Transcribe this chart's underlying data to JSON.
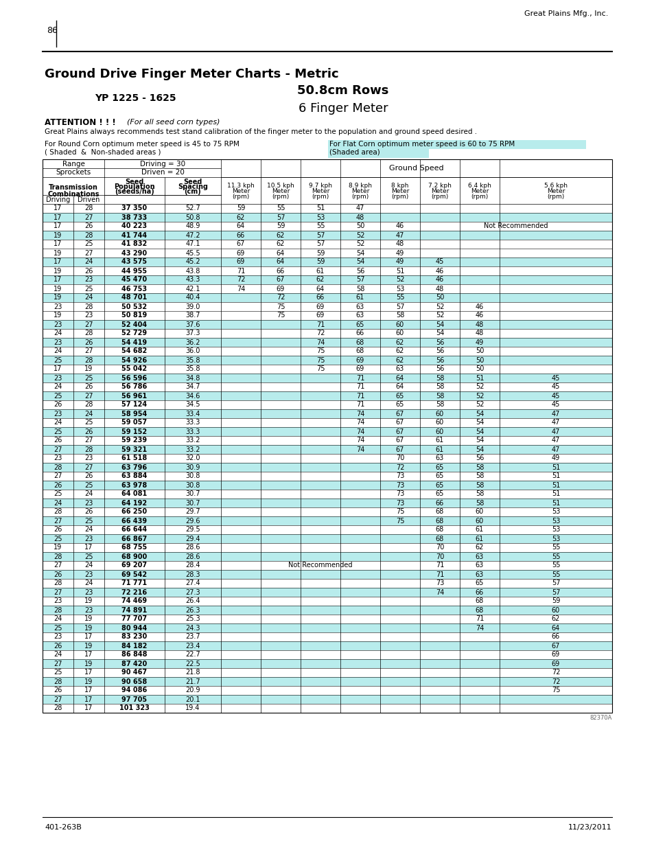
{
  "page_num": "86",
  "company": "Great Plains Mfg., Inc.",
  "title": "Ground Drive Finger Meter Charts - Metric",
  "subtitle1": "YP 1225 - 1625",
  "subtitle2": "50.8cm Rows",
  "subtitle3": "6 Finger Meter",
  "attention_bold": "ATTENTION ! ! !",
  "attention_normal": "  (For all seed corn types)",
  "attention_line2": "Great Plains always recommends test stand calibration of the finger meter to the population and ground speed desired .",
  "round_corn_line1": "For Round Corn optimum meter speed is 45 to 75 RPM",
  "round_corn_line2": "( Shaded  &  Non-shaded areas )",
  "flat_corn_line1": "For Flat Corn optimum meter speed is 60 to 75 RPM",
  "flat_corn_line2": "(Shaded area)",
  "driving_val": "Driving = 30",
  "driven_val": "Driven = 20",
  "ground_speed_label": "Ground Speed",
  "not_recommended_text": "Not Recommended",
  "footer_left": "401-263B",
  "footer_right": "11/23/2011",
  "figure_num": "82370A",
  "rows": [
    [
      17,
      28,
      "37 350",
      52.7,
      59,
      55,
      51,
      47,
      "",
      "",
      "",
      ""
    ],
    [
      17,
      27,
      "38 733",
      50.8,
      62,
      57,
      53,
      48,
      "",
      "",
      "",
      ""
    ],
    [
      17,
      26,
      "40 223",
      48.9,
      64,
      59,
      55,
      50,
      46,
      "",
      "",
      ""
    ],
    [
      19,
      28,
      "41 744",
      47.2,
      66,
      62,
      57,
      52,
      47,
      "",
      "",
      ""
    ],
    [
      17,
      25,
      "41 832",
      47.1,
      67,
      62,
      57,
      52,
      48,
      "",
      "",
      ""
    ],
    [
      19,
      27,
      "43 290",
      45.5,
      69,
      64,
      59,
      54,
      49,
      "",
      "",
      ""
    ],
    [
      17,
      24,
      "43 575",
      45.2,
      69,
      64,
      59,
      54,
      49,
      45,
      "",
      ""
    ],
    [
      19,
      26,
      "44 955",
      43.8,
      71,
      66,
      61,
      56,
      51,
      46,
      "",
      ""
    ],
    [
      17,
      23,
      "45 470",
      43.3,
      72,
      67,
      62,
      57,
      52,
      46,
      "",
      ""
    ],
    [
      19,
      25,
      "46 753",
      42.1,
      74,
      69,
      64,
      58,
      53,
      48,
      "",
      ""
    ],
    [
      19,
      24,
      "48 701",
      40.4,
      "",
      72,
      66,
      61,
      55,
      50,
      "",
      ""
    ],
    [
      23,
      28,
      "50 532",
      39.0,
      "",
      75,
      69,
      63,
      57,
      52,
      46,
      ""
    ],
    [
      19,
      23,
      "50 819",
      38.7,
      "",
      75,
      69,
      63,
      58,
      52,
      46,
      ""
    ],
    [
      23,
      27,
      "52 404",
      37.6,
      "",
      "",
      71,
      65,
      60,
      54,
      48,
      ""
    ],
    [
      24,
      28,
      "52 729",
      37.3,
      "",
      "",
      72,
      66,
      60,
      54,
      48,
      ""
    ],
    [
      23,
      26,
      "54 419",
      36.2,
      "",
      "",
      74,
      68,
      62,
      56,
      49,
      ""
    ],
    [
      24,
      27,
      "54 682",
      36.0,
      "",
      "",
      75,
      68,
      62,
      56,
      50,
      ""
    ],
    [
      25,
      28,
      "54 926",
      35.8,
      "",
      "",
      75,
      69,
      62,
      56,
      50,
      ""
    ],
    [
      17,
      19,
      "55 042",
      35.8,
      "",
      "",
      75,
      69,
      63,
      56,
      50,
      ""
    ],
    [
      23,
      25,
      "56 596",
      34.8,
      "",
      "",
      "",
      71,
      64,
      58,
      51,
      45
    ],
    [
      24,
      26,
      "56 786",
      34.7,
      "",
      "",
      "",
      71,
      64,
      58,
      52,
      45
    ],
    [
      25,
      27,
      "56 961",
      34.6,
      "",
      "",
      "",
      71,
      65,
      58,
      52,
      45
    ],
    [
      26,
      28,
      "57 124",
      34.5,
      "",
      "",
      "",
      71,
      65,
      58,
      52,
      45
    ],
    [
      23,
      24,
      "58 954",
      33.4,
      "",
      "",
      "",
      74,
      67,
      60,
      54,
      47
    ],
    [
      24,
      25,
      "59 057",
      33.3,
      "",
      "",
      "",
      74,
      67,
      60,
      54,
      47
    ],
    [
      25,
      26,
      "59 152",
      33.3,
      "",
      "",
      "",
      74,
      67,
      60,
      54,
      47
    ],
    [
      26,
      27,
      "59 239",
      33.2,
      "",
      "",
      "",
      74,
      67,
      61,
      54,
      47
    ],
    [
      27,
      28,
      "59 321",
      33.2,
      "",
      "",
      "",
      74,
      67,
      61,
      54,
      47
    ],
    [
      23,
      23,
      "61 518",
      32.0,
      "",
      "",
      "",
      "",
      70,
      63,
      56,
      49
    ],
    [
      28,
      27,
      "63 796",
      30.9,
      "",
      "",
      "",
      "",
      72,
      65,
      58,
      51
    ],
    [
      27,
      26,
      "63 884",
      30.8,
      "",
      "",
      "",
      "",
      73,
      65,
      58,
      51
    ],
    [
      26,
      25,
      "63 978",
      30.8,
      "",
      "",
      "",
      "",
      73,
      65,
      58,
      51
    ],
    [
      25,
      24,
      "64 081",
      30.7,
      "",
      "",
      "",
      "",
      73,
      65,
      58,
      51
    ],
    [
      24,
      23,
      "64 192",
      30.7,
      "",
      "",
      "",
      "",
      73,
      66,
      58,
      51
    ],
    [
      28,
      26,
      "66 250",
      29.7,
      "",
      "",
      "",
      "",
      75,
      68,
      60,
      53
    ],
    [
      27,
      25,
      "66 439",
      29.6,
      "",
      "",
      "",
      "",
      75,
      68,
      60,
      53
    ],
    [
      26,
      24,
      "66 644",
      29.5,
      "",
      "",
      "",
      "",
      "",
      68,
      61,
      53
    ],
    [
      25,
      23,
      "66 867",
      29.4,
      "",
      "",
      "",
      "",
      "",
      68,
      61,
      53
    ],
    [
      19,
      17,
      "68 755",
      28.6,
      "",
      "",
      "",
      "",
      "",
      70,
      62,
      55
    ],
    [
      28,
      25,
      "68 900",
      28.6,
      "",
      "",
      "",
      "",
      "",
      70,
      63,
      55
    ],
    [
      27,
      24,
      "69 207",
      28.4,
      "",
      "",
      "",
      "",
      "",
      71,
      63,
      55
    ],
    [
      26,
      23,
      "69 542",
      28.3,
      "",
      "",
      "",
      "",
      "",
      71,
      63,
      55
    ],
    [
      28,
      24,
      "71 771",
      27.4,
      "",
      "",
      "",
      "",
      "",
      73,
      65,
      57
    ],
    [
      27,
      23,
      "72 216",
      27.3,
      "",
      "",
      "",
      "",
      "",
      74,
      66,
      57
    ],
    [
      23,
      19,
      "74 469",
      26.4,
      "",
      "",
      "",
      "",
      "",
      "",
      68,
      59
    ],
    [
      28,
      23,
      "74 891",
      26.3,
      "",
      "",
      "",
      "",
      "",
      "",
      68,
      60
    ],
    [
      24,
      19,
      "77 707",
      25.3,
      "",
      "",
      "",
      "",
      "",
      "",
      71,
      62
    ],
    [
      25,
      19,
      "80 944",
      24.3,
      "",
      "",
      "",
      "",
      "",
      "",
      74,
      64
    ],
    [
      23,
      17,
      "83 230",
      23.7,
      "",
      "",
      "",
      "",
      "",
      "",
      "",
      66
    ],
    [
      26,
      19,
      "84 182",
      23.4,
      "",
      "",
      "",
      "",
      "",
      "",
      "",
      67
    ],
    [
      24,
      17,
      "86 848",
      22.7,
      "",
      "",
      "",
      "",
      "",
      "",
      "",
      69
    ],
    [
      27,
      19,
      "87 420",
      22.5,
      "",
      "",
      "",
      "",
      "",
      "",
      "",
      69
    ],
    [
      25,
      17,
      "90 467",
      21.8,
      "",
      "",
      "",
      "",
      "",
      "",
      "",
      72
    ],
    [
      28,
      19,
      "90 658",
      21.7,
      "",
      "",
      "",
      "",
      "",
      "",
      "",
      72
    ],
    [
      26,
      17,
      "94 086",
      20.9,
      "",
      "",
      "",
      "",
      "",
      "",
      "",
      75
    ],
    [
      27,
      17,
      "97 705",
      20.1,
      "",
      "",
      "",
      "",
      "",
      "",
      "",
      ""
    ],
    [
      28,
      17,
      "101 323",
      19.4,
      "",
      "",
      "",
      "",
      "",
      "",
      "",
      ""
    ]
  ],
  "shaded_rows_cyan": [
    1,
    3,
    6,
    8,
    10,
    13,
    15,
    17,
    19,
    21,
    23,
    25,
    27,
    29,
    31,
    33,
    35,
    37,
    39,
    41,
    43,
    45,
    47,
    49,
    51,
    53,
    55
  ],
  "background_color": "#ffffff",
  "cyan_color": "#b8ecec",
  "text_color": "#000000"
}
